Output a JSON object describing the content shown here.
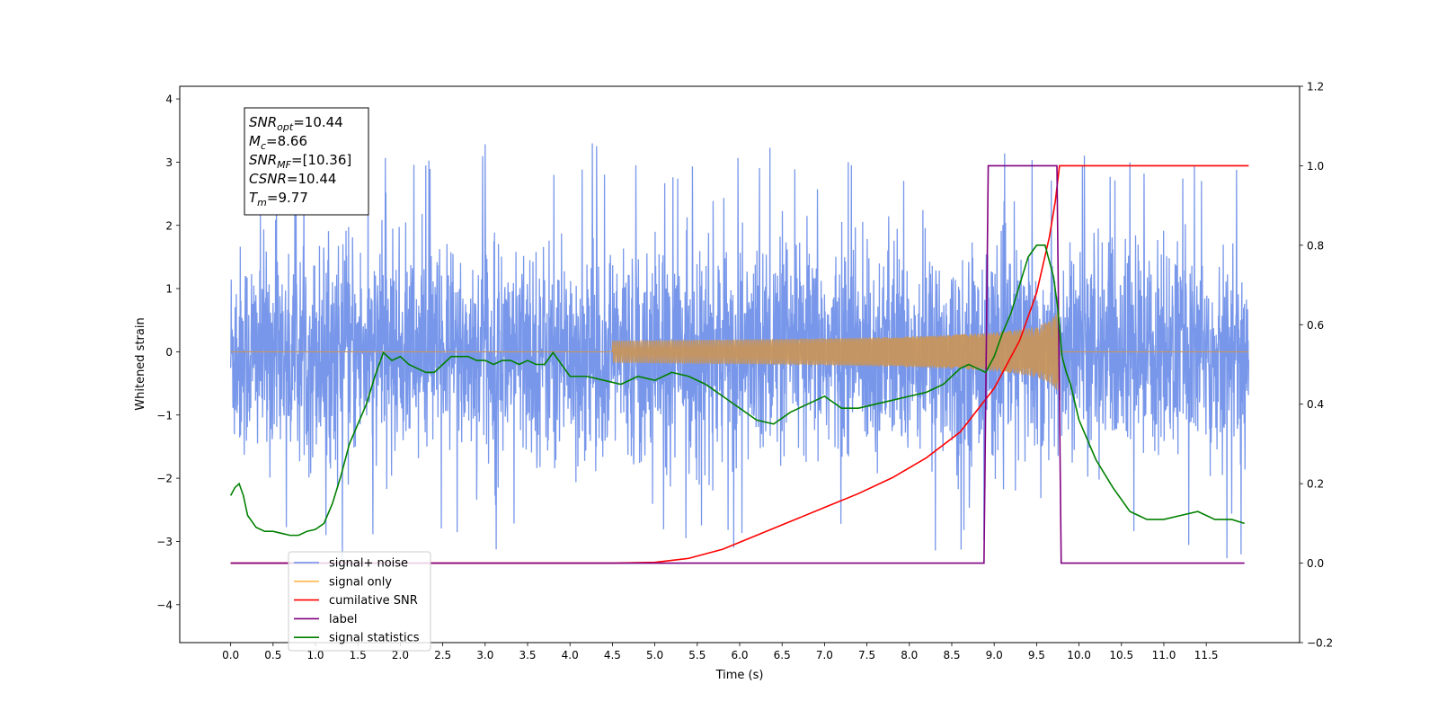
{
  "chart_data": {
    "type": "line",
    "xlabel": "Time (s)",
    "ylabel": "Whitened strain",
    "xlim": [
      -0.6,
      12.6
    ],
    "ylim": [
      -4.6,
      4.2
    ],
    "y2lim": [
      -0.2,
      1.2
    ],
    "x_ticks": [
      0.0,
      0.5,
      1.0,
      1.5,
      2.0,
      2.5,
      3.0,
      3.5,
      4.0,
      4.5,
      5.0,
      5.5,
      6.0,
      6.5,
      7.0,
      7.5,
      8.0,
      8.5,
      9.0,
      9.5,
      10.0,
      10.5,
      11.0,
      11.5
    ],
    "x_tick_labels": [
      "0.0",
      "0.5",
      "1.0",
      "1.5",
      "2.0",
      "2.5",
      "3.0",
      "3.5",
      "4.0",
      "4.5",
      "5.0",
      "5.5",
      "6.0",
      "6.5",
      "7.0",
      "7.5",
      "8.0",
      "8.5",
      "9.0",
      "9.5",
      "10.0",
      "10.5",
      "11.0",
      "11.5"
    ],
    "y_ticks": [
      4,
      3,
      2,
      1,
      0,
      -1,
      -2,
      -3,
      -4
    ],
    "y_tick_labels": [
      "4",
      "3",
      "2",
      "1",
      "0",
      "−1",
      "−2",
      "−3",
      "−4"
    ],
    "y2_ticks": [
      1.2,
      1.0,
      0.8,
      0.6,
      0.4,
      0.2,
      0.0,
      -0.2
    ],
    "y2_tick_labels": [
      "1.2",
      "1.0",
      "0.8",
      "0.6",
      "0.4",
      "0.2",
      "0.0",
      "−0.2"
    ],
    "annotation_lines": [
      {
        "sym": "SNR",
        "sub": "opt",
        "val": "=10.44"
      },
      {
        "sym": "M",
        "sub": "c",
        "val": "=8.66"
      },
      {
        "sym": "SNR",
        "sub": "MF",
        "val": "=[10.36]"
      },
      {
        "sym": "CSNR",
        "sub": "",
        "val": "=10.44"
      },
      {
        "sym": "T",
        "sub": "m",
        "val": "=9.77"
      }
    ],
    "legend_position": "lower-left",
    "series": [
      {
        "name": "signal+ noise",
        "color": "#6d8ee8",
        "axis": "left",
        "description": "noise band roughly between -2.3 and 2.3 with spikes up to 3.8 and down to -3.5 over 0 to 12 s"
      },
      {
        "name": "signal only",
        "color": "#ffb74d",
        "axis": "left",
        "description": "chirp growing from 0 near 5 s to about 0.7 amplitude at 9.77 s, then ends"
      },
      {
        "name": "cumilative SNR",
        "color": "#ff0000",
        "axis": "right",
        "x": [
          0,
          4.5,
          5.0,
          5.4,
          5.8,
          6.2,
          6.6,
          7.0,
          7.4,
          7.8,
          8.2,
          8.6,
          9.0,
          9.3,
          9.5,
          9.65,
          9.72,
          9.77,
          12.0
        ],
        "y": [
          0,
          0,
          0.002,
          0.012,
          0.035,
          0.07,
          0.105,
          0.14,
          0.175,
          0.215,
          0.265,
          0.33,
          0.44,
          0.56,
          0.68,
          0.82,
          0.91,
          1.0,
          1.0
        ]
      },
      {
        "name": "label",
        "color": "#800080",
        "axis": "right",
        "x": [
          0,
          8.88,
          8.93,
          9.74,
          9.79,
          11.95
        ],
        "y": [
          0,
          0,
          1,
          1,
          0,
          0
        ]
      },
      {
        "name": "signal statistics",
        "color": "#008000",
        "axis": "right",
        "x": [
          0,
          0.05,
          0.1,
          0.15,
          0.2,
          0.3,
          0.4,
          0.5,
          0.6,
          0.7,
          0.8,
          0.9,
          1.0,
          1.1,
          1.2,
          1.3,
          1.4,
          1.5,
          1.6,
          1.7,
          1.8,
          1.9,
          2.0,
          2.1,
          2.2,
          2.3,
          2.4,
          2.5,
          2.6,
          2.7,
          2.8,
          2.9,
          3.0,
          3.1,
          3.2,
          3.3,
          3.4,
          3.5,
          3.6,
          3.7,
          3.8,
          3.9,
          4.0,
          4.2,
          4.4,
          4.6,
          4.8,
          5.0,
          5.2,
          5.4,
          5.6,
          5.8,
          6.0,
          6.2,
          6.4,
          6.6,
          6.8,
          7.0,
          7.2,
          7.4,
          7.6,
          7.8,
          8.0,
          8.2,
          8.4,
          8.6,
          8.7,
          8.8,
          8.9,
          9.0,
          9.1,
          9.2,
          9.3,
          9.4,
          9.5,
          9.6,
          9.7,
          9.75,
          9.8,
          9.85,
          9.9,
          10.0,
          10.2,
          10.4,
          10.6,
          10.8,
          11.0,
          11.2,
          11.4,
          11.6,
          11.8,
          11.95
        ],
        "y": [
          0.17,
          0.19,
          0.2,
          0.17,
          0.12,
          0.09,
          0.08,
          0.08,
          0.075,
          0.07,
          0.07,
          0.08,
          0.085,
          0.1,
          0.15,
          0.22,
          0.3,
          0.35,
          0.4,
          0.47,
          0.53,
          0.51,
          0.52,
          0.5,
          0.49,
          0.48,
          0.48,
          0.5,
          0.52,
          0.52,
          0.52,
          0.51,
          0.51,
          0.5,
          0.51,
          0.51,
          0.5,
          0.51,
          0.5,
          0.5,
          0.53,
          0.5,
          0.47,
          0.47,
          0.46,
          0.45,
          0.47,
          0.46,
          0.48,
          0.47,
          0.45,
          0.42,
          0.39,
          0.36,
          0.35,
          0.38,
          0.4,
          0.42,
          0.39,
          0.39,
          0.4,
          0.41,
          0.42,
          0.43,
          0.45,
          0.49,
          0.5,
          0.49,
          0.48,
          0.52,
          0.58,
          0.63,
          0.7,
          0.77,
          0.8,
          0.8,
          0.72,
          0.64,
          0.52,
          0.48,
          0.45,
          0.36,
          0.26,
          0.19,
          0.13,
          0.11,
          0.11,
          0.12,
          0.13,
          0.11,
          0.11,
          0.1
        ]
      }
    ]
  }
}
